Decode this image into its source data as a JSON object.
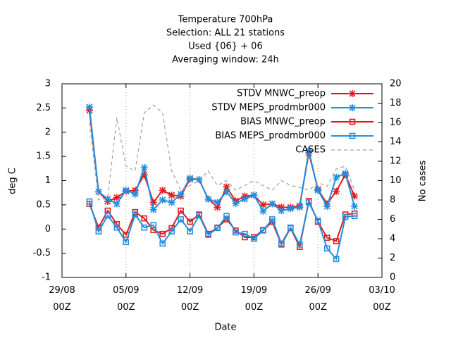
{
  "chart_data": {
    "type": "line",
    "title": [
      "Temperature 700hPa",
      "Selection: ALL      21 stations",
      "Used {06} + 06",
      "Averaging window: 24h"
    ],
    "x_label": "Date",
    "y_label": "deg C",
    "y2_label": "No cases",
    "x": [
      "01/09 00Z",
      "02/09 00Z",
      "03/09 00Z",
      "04/09 00Z",
      "05/09 00Z",
      "06/09 00Z",
      "07/09 00Z",
      "08/09 00Z",
      "09/09 00Z",
      "10/09 00Z",
      "11/09 00Z",
      "12/09 00Z",
      "13/09 00Z",
      "14/09 00Z",
      "15/09 00Z",
      "16/09 00Z",
      "17/09 00Z",
      "18/09 00Z",
      "19/09 00Z",
      "20/09 00Z",
      "21/09 00Z",
      "22/09 00Z",
      "23/09 00Z",
      "24/09 00Z",
      "25/09 00Z",
      "26/09 00Z",
      "27/09 00Z",
      "28/09 00Z",
      "29/09 00Z",
      "30/09 00Z"
    ],
    "xlim": [
      "29/08 00Z",
      "03/10 00Z"
    ],
    "xticks": [
      "29/08 00Z",
      "05/09 00Z",
      "12/09 00Z",
      "19/09 00Z",
      "26/09 00Z",
      "03/10 00Z"
    ],
    "ylim": [
      -1,
      3
    ],
    "yticks": [
      -1,
      -0.5,
      0,
      0.5,
      1,
      1.5,
      2,
      2.5,
      3
    ],
    "y2lim": [
      0,
      20
    ],
    "y2ticks": [
      0,
      2,
      4,
      6,
      8,
      10,
      12,
      14,
      16,
      18,
      20
    ],
    "grid": "x",
    "legend": "top-right",
    "series": [
      {
        "name": "STDV MNWC_preop",
        "color": "#e31a1c",
        "marker": "cross",
        "values": [
          2.45,
          0.77,
          0.57,
          0.65,
          0.78,
          0.8,
          1.12,
          0.55,
          0.8,
          0.7,
          0.68,
          1.03,
          1.02,
          0.62,
          0.45,
          0.87,
          0.58,
          0.68,
          0.7,
          0.5,
          0.52,
          0.45,
          0.45,
          0.48,
          1.57,
          0.82,
          0.52,
          0.78,
          1.12,
          0.68
        ]
      },
      {
        "name": "STDV MEPS_prodmbr000",
        "color": "#1f8ee0",
        "marker": "cross",
        "values": [
          2.52,
          0.77,
          0.62,
          0.52,
          0.8,
          0.72,
          1.27,
          0.4,
          0.6,
          0.55,
          0.72,
          1.05,
          1.02,
          0.62,
          0.55,
          0.77,
          0.53,
          0.62,
          0.7,
          0.37,
          0.52,
          0.38,
          0.42,
          0.45,
          1.62,
          0.8,
          0.47,
          1.07,
          1.15,
          0.47
        ]
      },
      {
        "name": "BIAS MNWC_preop",
        "color": "#e31a1c",
        "marker": "square",
        "values": [
          0.52,
          0.03,
          0.38,
          0.1,
          -0.12,
          0.35,
          0.22,
          -0.02,
          -0.1,
          0.02,
          0.38,
          0.15,
          0.3,
          -0.1,
          0.03,
          0.2,
          -0.03,
          -0.17,
          -0.17,
          -0.02,
          0.15,
          -0.32,
          0.02,
          -0.37,
          0.58,
          0.15,
          -0.18,
          -0.25,
          0.3,
          0.32
        ]
      },
      {
        "name": "BIAS MEPS_prodmbr000",
        "color": "#1f8ee0",
        "marker": "square",
        "values": [
          0.57,
          -0.05,
          0.28,
          0.03,
          -0.27,
          0.3,
          0.03,
          0.08,
          -0.3,
          -0.05,
          0.2,
          -0.05,
          0.28,
          -0.12,
          0.02,
          0.27,
          -0.07,
          -0.1,
          -0.2,
          -0.03,
          0.2,
          -0.3,
          0.03,
          -0.32,
          0.55,
          0.17,
          -0.4,
          -0.62,
          0.25,
          0.27
        ]
      },
      {
        "name": "CASES",
        "color": "#a0a0a0",
        "marker": "none",
        "dash": true,
        "axis": "y2",
        "values": [
          16,
          8,
          8.2,
          16.5,
          11.5,
          11,
          17,
          17.8,
          17,
          11,
          9,
          9.5,
          10,
          11,
          9.5,
          10,
          9,
          9.5,
          10,
          9.5,
          9,
          10,
          9.5,
          9.3,
          9,
          9.8,
          9.4,
          11.2,
          11.5,
          9
        ]
      }
    ]
  }
}
